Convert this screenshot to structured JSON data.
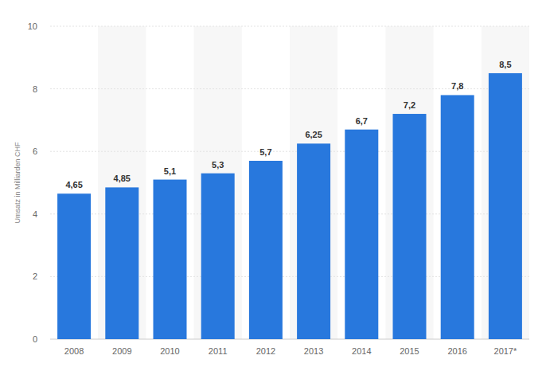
{
  "chart_data": {
    "type": "bar",
    "y_label": "Umsatz in Milliarden CHF",
    "categories": [
      "2008",
      "2009",
      "2010",
      "2011",
      "2012",
      "2013",
      "2014",
      "2015",
      "2016",
      "2017*"
    ],
    "values": [
      4.65,
      4.85,
      5.1,
      5.3,
      5.7,
      6.25,
      6.7,
      7.2,
      7.8,
      8.5
    ],
    "value_labels": [
      "4,65",
      "4,85",
      "5,1",
      "5,3",
      "5,7",
      "6,25",
      "6,7",
      "7,2",
      "7,8",
      "8,5"
    ],
    "color": "#2878dd",
    "ylim": [
      0,
      10
    ],
    "yticks": [
      0,
      2,
      4,
      6,
      8,
      10
    ],
    "grid": true,
    "data_labels": true
  }
}
